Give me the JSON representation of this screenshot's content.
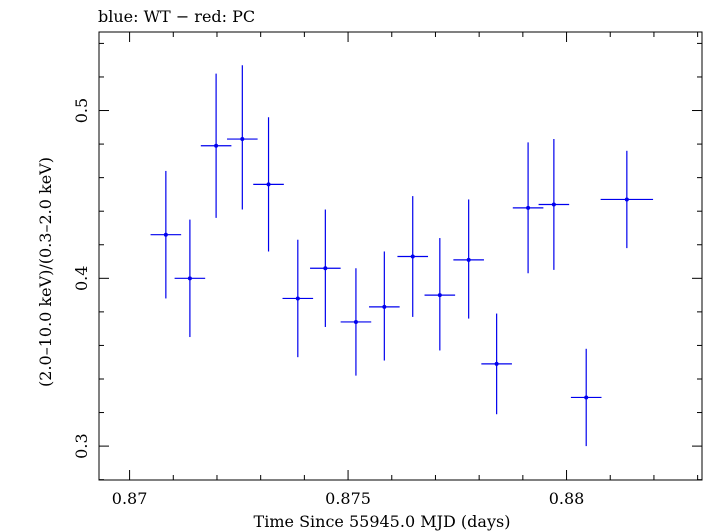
{
  "chart_data": {
    "type": "scatter",
    "title": "blue: WT − red: PC",
    "xlabel": "Time Since 55945.0 MJD (days)",
    "ylabel": "(2.0–10.0 keV)/(0.3–2.0 keV)",
    "xlim": [
      0.8693,
      0.8831
    ],
    "ylim": [
      0.2798,
      0.5468
    ],
    "x_ticks": [
      {
        "value": 0.87,
        "label": "0.87"
      },
      {
        "value": 0.875,
        "label": "0.875"
      },
      {
        "value": 0.88,
        "label": "0.88"
      }
    ],
    "y_ticks": [
      {
        "value": 0.3,
        "label": "0.3"
      },
      {
        "value": 0.4,
        "label": "0.4"
      },
      {
        "value": 0.5,
        "label": "0.5"
      }
    ],
    "grid": false,
    "series": [
      {
        "name": "WT",
        "color": "#0000ee",
        "points": [
          {
            "x": 0.87083,
            "xerr": 0.00035,
            "y": 0.426,
            "ylo": 0.388,
            "yhi": 0.464
          },
          {
            "x": 0.87138,
            "xerr": 0.00035,
            "y": 0.4,
            "ylo": 0.365,
            "yhi": 0.435
          },
          {
            "x": 0.87198,
            "xerr": 0.00035,
            "y": 0.479,
            "ylo": 0.436,
            "yhi": 0.522
          },
          {
            "x": 0.87258,
            "xerr": 0.00035,
            "y": 0.483,
            "ylo": 0.441,
            "yhi": 0.527
          },
          {
            "x": 0.87318,
            "xerr": 0.00035,
            "y": 0.456,
            "ylo": 0.416,
            "yhi": 0.496
          },
          {
            "x": 0.87385,
            "xerr": 0.00035,
            "y": 0.388,
            "ylo": 0.353,
            "yhi": 0.423
          },
          {
            "x": 0.87448,
            "xerr": 0.00035,
            "y": 0.406,
            "ylo": 0.371,
            "yhi": 0.441
          },
          {
            "x": 0.87518,
            "xerr": 0.00035,
            "y": 0.374,
            "ylo": 0.342,
            "yhi": 0.406
          },
          {
            "x": 0.87583,
            "xerr": 0.00035,
            "y": 0.383,
            "ylo": 0.351,
            "yhi": 0.416
          },
          {
            "x": 0.87648,
            "xerr": 0.00035,
            "y": 0.413,
            "ylo": 0.377,
            "yhi": 0.449
          },
          {
            "x": 0.8771,
            "xerr": 0.00035,
            "y": 0.39,
            "ylo": 0.357,
            "yhi": 0.424
          },
          {
            "x": 0.87776,
            "xerr": 0.00035,
            "y": 0.411,
            "ylo": 0.376,
            "yhi": 0.447
          },
          {
            "x": 0.8784,
            "xerr": 0.00035,
            "y": 0.349,
            "ylo": 0.319,
            "yhi": 0.379
          },
          {
            "x": 0.87912,
            "xerr": 0.00035,
            "y": 0.442,
            "ylo": 0.403,
            "yhi": 0.481
          },
          {
            "x": 0.87971,
            "xerr": 0.00035,
            "y": 0.444,
            "ylo": 0.405,
            "yhi": 0.483
          },
          {
            "x": 0.88045,
            "xerr": 0.00035,
            "y": 0.329,
            "ylo": 0.3,
            "yhi": 0.358
          },
          {
            "x": 0.88138,
            "xerr": 0.0006,
            "y": 0.447,
            "ylo": 0.418,
            "yhi": 0.476
          }
        ]
      }
    ]
  }
}
